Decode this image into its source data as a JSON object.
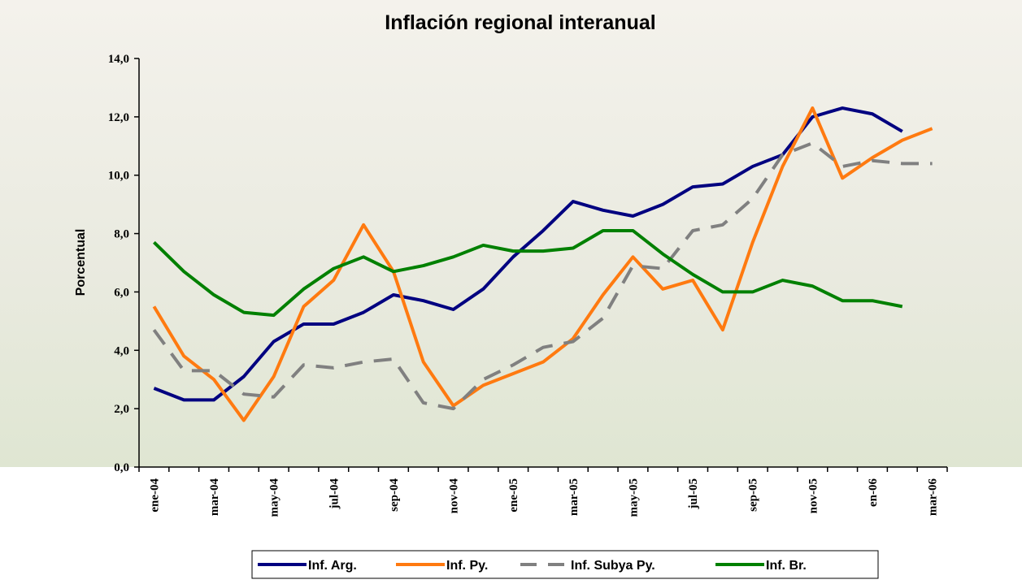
{
  "chart_data": {
    "type": "line",
    "title": "Inflación regional interanual",
    "y_label": "Porcentual",
    "categories": [
      "ene-04",
      null,
      "mar-04",
      null,
      "may-04",
      null,
      "jul-04",
      null,
      "sep-04",
      null,
      "nov-04",
      null,
      "ene-05",
      null,
      "mar-05",
      null,
      "may-05",
      null,
      "jul-05",
      null,
      "sep-05",
      null,
      "nov-05",
      null,
      "en-06",
      null,
      "mar-06"
    ],
    "series": [
      {
        "name": "Inf. Arg.",
        "color": "#000080",
        "dash": false,
        "values": [
          2.7,
          2.3,
          2.3,
          3.1,
          4.3,
          4.9,
          4.9,
          5.3,
          5.9,
          5.7,
          5.4,
          6.1,
          7.2,
          8.1,
          9.1,
          8.8,
          8.6,
          9.0,
          9.6,
          9.7,
          10.3,
          10.7,
          12.0,
          12.3,
          12.1,
          11.5,
          null
        ]
      },
      {
        "name": "Inf. Py.",
        "color": "#ff7a10",
        "dash": false,
        "values": [
          5.5,
          3.8,
          3.0,
          1.6,
          3.1,
          5.5,
          6.4,
          8.3,
          6.7,
          3.6,
          2.1,
          2.8,
          3.2,
          3.6,
          4.4,
          5.9,
          7.2,
          6.1,
          6.4,
          4.7,
          7.7,
          10.3,
          12.3,
          9.9,
          10.6,
          11.2,
          11.6
        ]
      },
      {
        "name": "Inf. Subya Py.",
        "color": "#808080",
        "dash": true,
        "values": [
          4.7,
          3.3,
          3.3,
          2.5,
          2.4,
          3.5,
          3.4,
          3.6,
          3.7,
          2.2,
          2.0,
          3.0,
          3.5,
          4.1,
          4.3,
          5.1,
          6.9,
          6.8,
          8.1,
          8.3,
          9.2,
          10.7,
          11.1,
          10.3,
          10.5,
          10.4,
          10.4
        ]
      },
      {
        "name": "Inf. Br.",
        "color": "#008000",
        "dash": false,
        "values": [
          7.7,
          6.7,
          5.9,
          5.3,
          5.2,
          6.1,
          6.8,
          7.2,
          6.7,
          6.9,
          7.2,
          7.6,
          7.4,
          7.4,
          7.5,
          8.1,
          8.1,
          7.3,
          6.6,
          6.0,
          6.0,
          6.4,
          6.2,
          5.7,
          5.7,
          5.5,
          null
        ]
      }
    ],
    "ylim": [
      0,
      14
    ],
    "yticks": [
      {
        "value": 0,
        "label": "0,0"
      },
      {
        "value": 2,
        "label": "2,0"
      },
      {
        "value": 4,
        "label": "4,0"
      },
      {
        "value": 6,
        "label": "6,0"
      },
      {
        "value": 8,
        "label": "8,0"
      },
      {
        "value": 10,
        "label": "10,0"
      },
      {
        "value": 12,
        "label": "12,0"
      },
      {
        "value": 14,
        "label": "14,0"
      }
    ],
    "legend": "bottom"
  }
}
